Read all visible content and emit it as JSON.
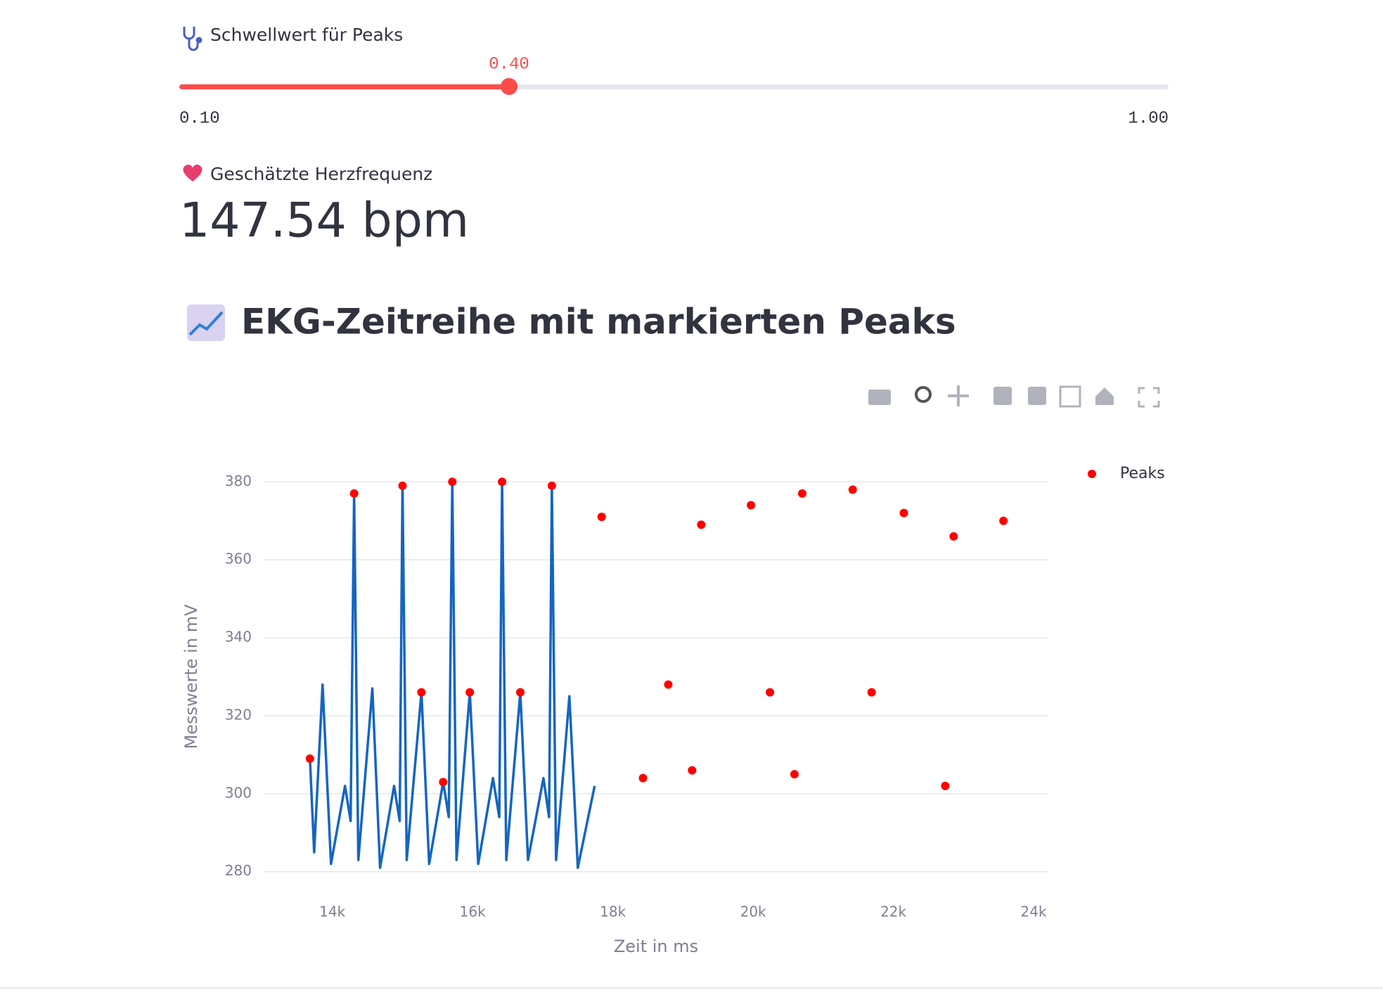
{
  "slider": {
    "label": "Schwellwert für Peaks",
    "value": {
      "value": 0.4,
      "label": "0.40"
    },
    "min": {
      "value": 0.1,
      "label": "0.10"
    },
    "max": {
      "value": 1.0,
      "label": "1.00"
    }
  },
  "metric": {
    "label": "Geschätzte Herzfrequenz",
    "value": "147.54 bpm"
  },
  "header": "EKG-Zeitreihe mit markierten Peaks",
  "chart_data": {
    "type": "line",
    "x_label": "Zeit in ms",
    "y_label": "Messwerte in mV",
    "xlim": [
      13030,
      24200
    ],
    "ylim": [
      274,
      386
    ],
    "xticks": [
      {
        "value": 14000,
        "label": "14k"
      },
      {
        "value": 16000,
        "label": "16k"
      },
      {
        "value": 18000,
        "label": "18k"
      },
      {
        "value": 20000,
        "label": "20k"
      },
      {
        "value": 22000,
        "label": "22k"
      },
      {
        "value": 24000,
        "label": "24k"
      }
    ],
    "yticks": [
      280,
      300,
      320,
      340,
      360,
      380
    ],
    "grid": true,
    "legend": "top-right",
    "series": [
      {
        "mode": "lines",
        "color": "#1565c0",
        "x": [
          13680,
          13740,
          13860,
          13980,
          14180,
          14260,
          14310,
          14370,
          14570,
          14680,
          14880,
          14960,
          15000,
          15060,
          15270,
          15380,
          15580,
          15660,
          15710,
          15770,
          15960,
          16080,
          16290,
          16380,
          16420,
          16480,
          16680,
          16790,
          17010,
          17090,
          17130,
          17190,
          17380,
          17500,
          17740
        ],
        "values": [
          309,
          285,
          328,
          282,
          302,
          293,
          377,
          283,
          327,
          281,
          302,
          293,
          379,
          283,
          326,
          282,
          303,
          294,
          380,
          283,
          326,
          282,
          304,
          294,
          380,
          283,
          326,
          283,
          304,
          294,
          379,
          283,
          325,
          281,
          302
        ]
      },
      {
        "name": "Peaks",
        "mode": "markers",
        "color": "#ff0000",
        "x": [
          13680,
          14310,
          15000,
          15270,
          15580,
          15710,
          15960,
          16420,
          16680,
          17130,
          17840,
          18430,
          18790,
          19130,
          19260,
          19970,
          20240,
          20590,
          20700,
          21420,
          21690,
          22150,
          22740,
          22860,
          23570
        ],
        "values": [
          309,
          377,
          379,
          326,
          303,
          380,
          326,
          380,
          326,
          379,
          371,
          304,
          328,
          306,
          369,
          374,
          326,
          305,
          377,
          378,
          326,
          372,
          302,
          366,
          370
        ]
      }
    ]
  }
}
